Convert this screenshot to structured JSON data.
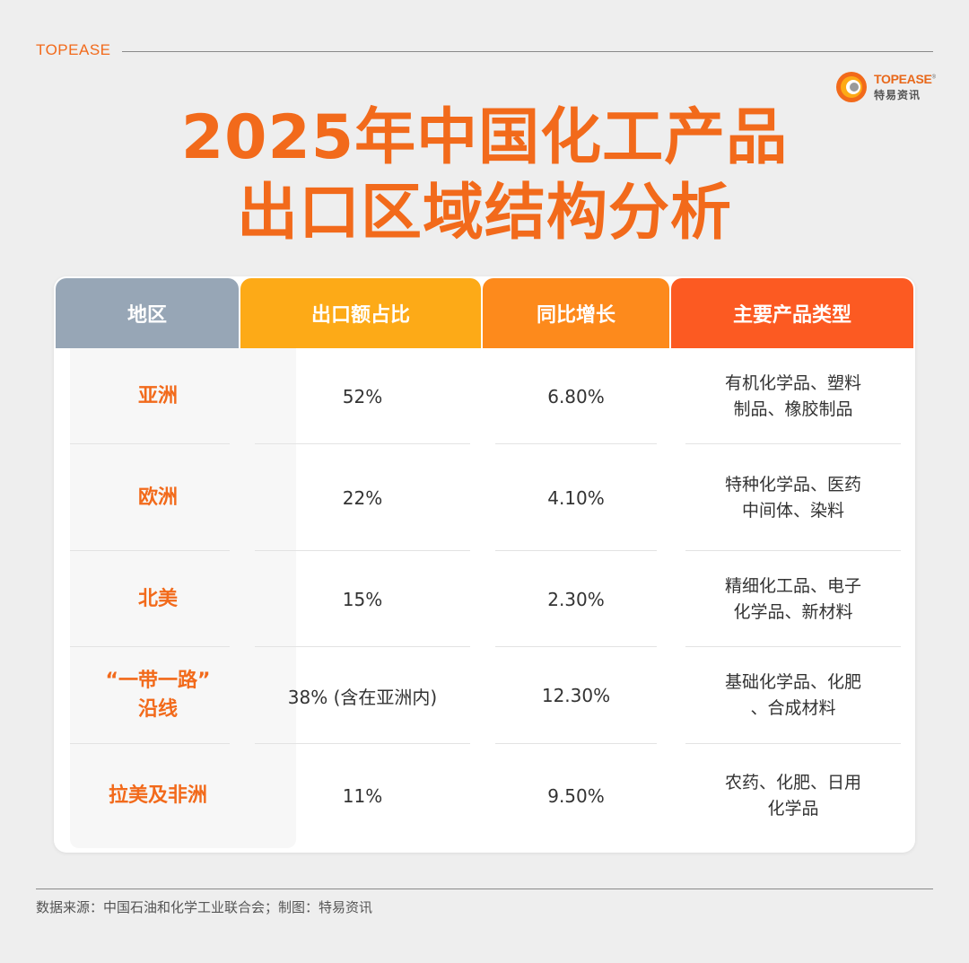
{
  "brand": {
    "label": "TOPEASE",
    "logo_text": "TOPEASE",
    "logo_cn": "特易资讯",
    "logo_colors": [
      "#f26a1b",
      "#fdaa17",
      "#888888"
    ]
  },
  "title": {
    "line1": "2025年中国化工产品",
    "line2": "出口区域结构分析"
  },
  "table": {
    "headers": {
      "region": "地区",
      "share": "出口额占比",
      "growth": "同比增长",
      "products": "主要产品类型"
    },
    "header_colors": {
      "region": "#97a6b6",
      "share": "#fdaa17",
      "growth": "#fd8a1c",
      "products": "#fc5a22"
    },
    "rows": [
      {
        "region": [
          "亚洲"
        ],
        "share": "52%",
        "growth": "6.80%",
        "products": [
          "有机化学品、塑料",
          "制品、橡胶制品"
        ]
      },
      {
        "region": [
          "欧洲"
        ],
        "share": "22%",
        "growth": "4.10%",
        "products": [
          "特种化学品、医药",
          "中间体、染料"
        ]
      },
      {
        "region": [
          "北美"
        ],
        "share": "15%",
        "growth": "2.30%",
        "products": [
          "精细化工品、电子",
          "化学品、新材料"
        ]
      },
      {
        "region": [
          "“一带一路”",
          "沿线"
        ],
        "share": "38% (含在亚洲内)",
        "growth": "12.30%",
        "products": [
          "基础化学品、化肥",
          "、合成材料"
        ]
      },
      {
        "region": [
          "拉美及非洲"
        ],
        "share": "11%",
        "growth": "9.50%",
        "products": [
          "农药、化肥、日用",
          "化学品"
        ]
      }
    ]
  },
  "footer": {
    "source": "数据来源：中国石油和化学工业联合会；制图：特易资讯"
  }
}
